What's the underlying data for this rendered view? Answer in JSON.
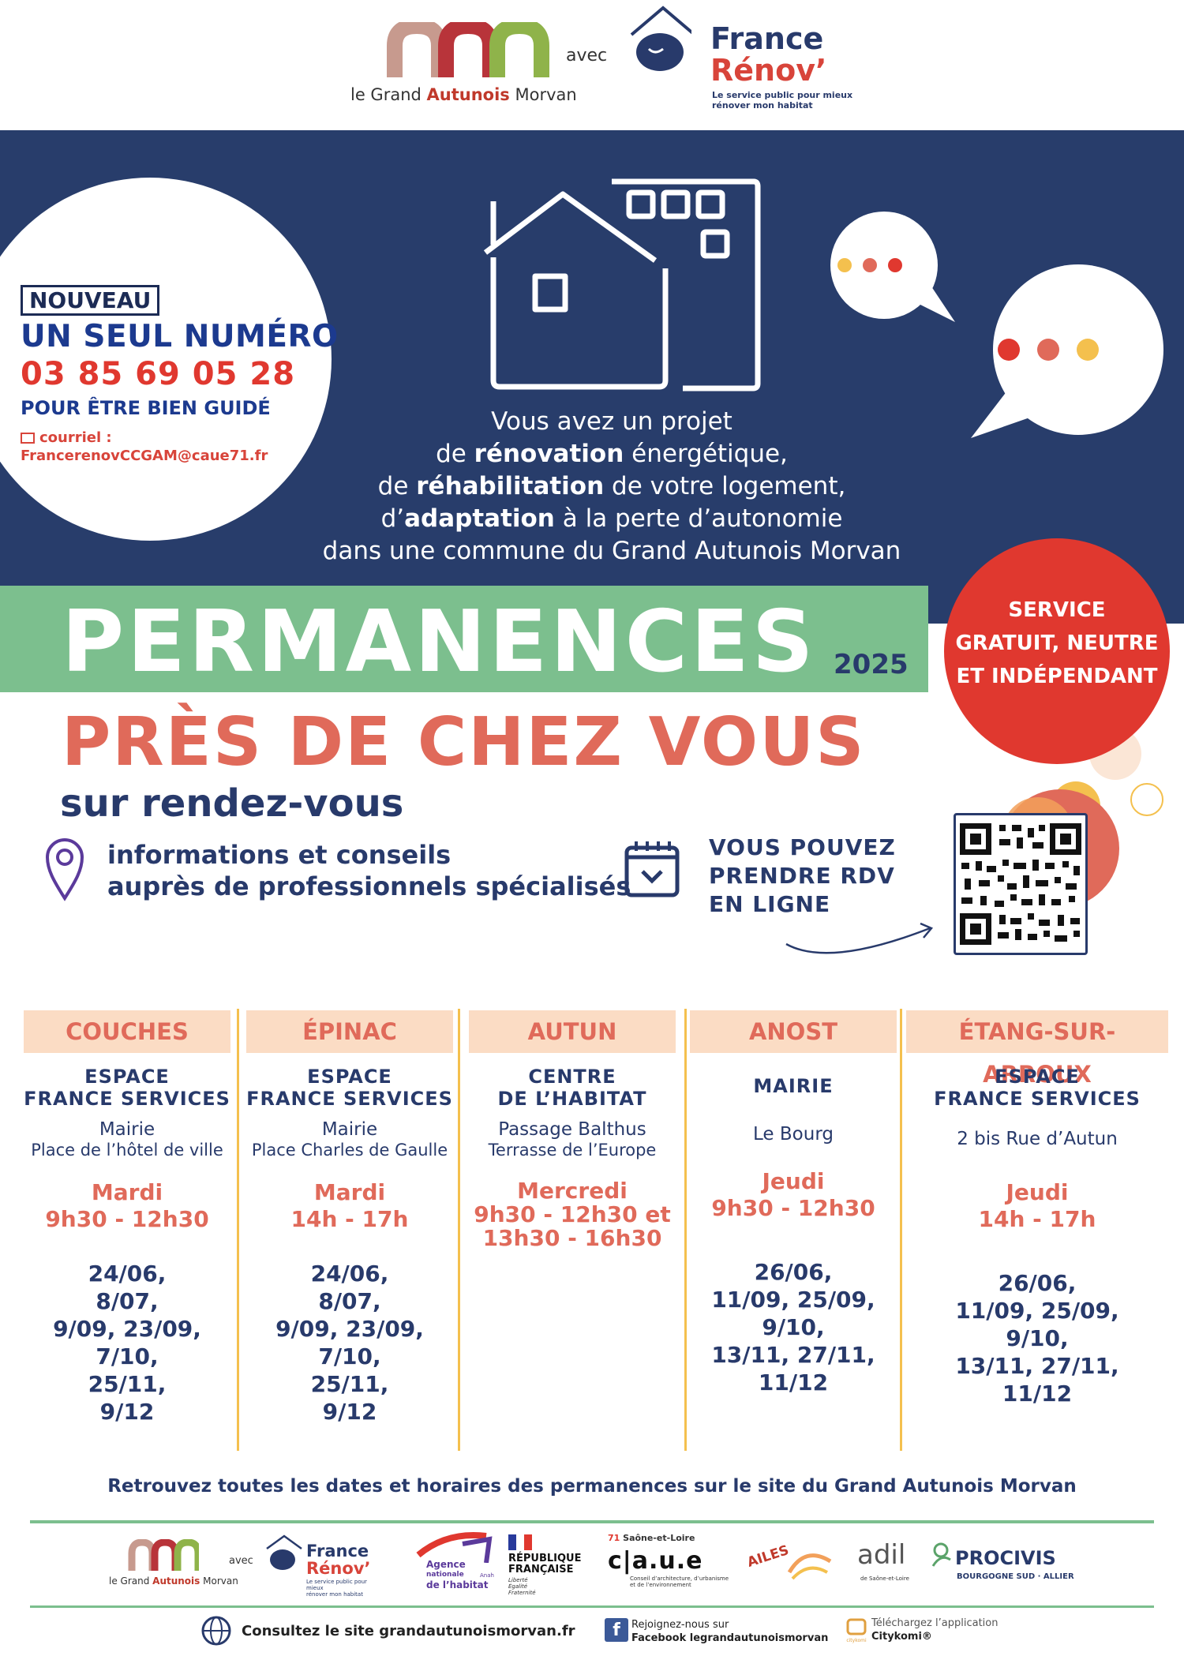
{
  "header": {
    "brand_prefix": "le Grand ",
    "brand_name": "Autunois",
    "brand_suffix": " Morvan",
    "avec": "avec",
    "fr_france": "France",
    "fr_renov": "Rénov’",
    "fr_tagline_1": "Le service public pour mieux",
    "fr_tagline_2": "rénover mon habitat"
  },
  "contact": {
    "badge": "NOUVEAU",
    "line1": "UN SEUL NUMÉRO",
    "phone": "03 85 69 05 28",
    "line3": "POUR ÊTRE BIEN GUIDÉ",
    "mail_label": "courriel :",
    "email": "FrancerenovCCGAM@caue71.fr"
  },
  "intro": {
    "l1": "Vous avez un projet",
    "l2a": "de ",
    "l2b": "rénovation",
    "l2c": " énergétique,",
    "l3a": "de ",
    "l3b": "réhabilitation",
    "l3c": " de votre logement,",
    "l4a": "d’",
    "l4b": "adaptation",
    "l4c": " à la perte d’autonomie",
    "l5": "dans une commune du Grand Autunois Morvan"
  },
  "permanences": {
    "title": "PERMANENCES",
    "year": "2025",
    "subtitle": "PRÈS DE CHEZ VOUS",
    "rdv": "sur rendez-vous",
    "info1": "informations et conseils",
    "info2": "auprès de professionnels spécialisés",
    "online1": "VOUS POUVEZ",
    "online2": "PRENDRE RDV",
    "online3": "EN LIGNE",
    "service1": "SERVICE",
    "service2": "GRATUIT, NEUTRE",
    "service3": "ET INDÉPENDANT"
  },
  "columns": [
    {
      "head": "COUCHES",
      "place": [
        "ESPACE",
        "FRANCE SERVICES"
      ],
      "addr": [
        "Mairie",
        "Place de l’hôtel de ville"
      ],
      "day": "Mardi",
      "hours": [
        "9h30 - 12h30"
      ],
      "dates": [
        "24/06,",
        "8/07,",
        "9/09, 23/09,",
        "7/10,",
        "25/11,",
        "9/12"
      ]
    },
    {
      "head": "ÉPINAC",
      "place": [
        "ESPACE",
        "FRANCE SERVICES"
      ],
      "addr": [
        "Mairie",
        "Place Charles de Gaulle"
      ],
      "day": "Mardi",
      "hours": [
        "14h - 17h"
      ],
      "dates": [
        "24/06,",
        "8/07,",
        "9/09, 23/09,",
        "7/10,",
        "25/11,",
        "9/12"
      ]
    },
    {
      "head": "AUTUN",
      "place": [
        "CENTRE",
        "DE L’HABITAT"
      ],
      "addr": [
        "Passage Balthus",
        "Terrasse de l’Europe"
      ],
      "day": "Mercredi",
      "hours": [
        "9h30 - 12h30 et",
        "13h30 - 16h30"
      ],
      "dates": []
    },
    {
      "head": "ANOST",
      "place": [
        "MAIRIE"
      ],
      "addr": [
        "Le Bourg"
      ],
      "day": "Jeudi",
      "hours": [
        "9h30 - 12h30"
      ],
      "dates": [
        "26/06,",
        "11/09, 25/09,",
        "9/10,",
        "13/11, 27/11,",
        "11/12"
      ]
    },
    {
      "head": "ÉTANG-SUR-ARROUX",
      "place": [
        "ESPACE",
        "FRANCE SERVICES"
      ],
      "addr": [
        "2 bis Rue d’Autun"
      ],
      "day": "Jeudi",
      "hours": [
        "14h - 17h"
      ],
      "dates": [
        "26/06,",
        "11/09, 25/09,",
        "9/10,",
        "13/11, 27/11,",
        "11/12"
      ]
    }
  ],
  "footer": {
    "notice": "Retrouvez toutes les dates et horaires des permanences sur le site du Grand Autunois Morvan",
    "partners": {
      "avec": "avec",
      "anah1": "Agence",
      "anah2": "nationale",
      "anah3": "de l’habitat",
      "anah4": "Anah",
      "rf1": "RÉPUBLIQUE",
      "rf2": "FRANÇAISE",
      "rf3": "Liberté",
      "rf4": "Égalité",
      "rf5": "Fraternité",
      "caue_num": "71",
      "caue_dept": "Saône-et-Loire",
      "caue": "c|a.u.e",
      "caue_sub1": "Conseil d’architecture, d’urbanisme",
      "caue_sub2": "et de l’environnement",
      "ailes": "AILES",
      "adil": "adil",
      "adil_sub": "de Saône-et-Loire",
      "procivis": "PROCIVIS",
      "procivis_sub": "BOURGOGNE SUD · ALLIER"
    },
    "site": "Consultez le site grandautunoismorvan.fr",
    "fb1": "Rejoignez-nous sur",
    "fb2": "Facebook legrandautunoismorvan",
    "app1": "Téléchargez l’application",
    "app2": "Citykomi®",
    "app_small": "citykomi"
  },
  "colors": {
    "navy": "#283d6b",
    "green": "#7cbf8e",
    "red": "#e0382f",
    "coral": "#e06a5a",
    "yellow": "#f4c04e",
    "peach": "#fbdcc4"
  }
}
